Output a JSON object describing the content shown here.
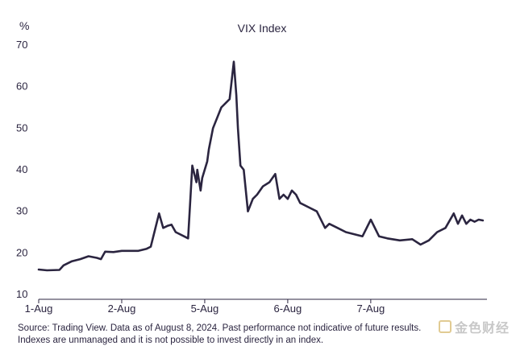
{
  "chart_data": {
    "type": "line",
    "title": "VIX Index",
    "ylabel": "%",
    "xlabel": "",
    "ylim": [
      10,
      70
    ],
    "yticks": [
      10,
      20,
      30,
      40,
      50,
      60,
      70
    ],
    "xlim": [
      0,
      5.4
    ],
    "xticks": [
      {
        "label": "1-Aug",
        "pos": 0
      },
      {
        "label": "2-Aug",
        "pos": 1
      },
      {
        "label": "5-Aug",
        "pos": 2
      },
      {
        "label": "6-Aug",
        "pos": 3
      },
      {
        "label": "7-Aug",
        "pos": 4
      }
    ],
    "grid": false,
    "legend": "none",
    "line_color": "#2b2540",
    "series": [
      {
        "x": [
          0,
          0.1,
          0.25,
          0.3,
          0.4,
          0.5,
          0.6,
          0.7,
          0.75,
          0.8,
          0.9,
          1.0,
          1.2,
          1.3,
          1.35,
          1.45,
          1.5,
          1.55,
          1.6,
          1.65,
          1.75,
          1.8,
          1.85,
          1.9,
          1.91,
          1.95,
          1.97,
          2.0,
          2.03,
          2.05,
          2.1,
          2.2,
          2.3,
          2.35,
          2.38,
          2.4,
          2.43,
          2.47,
          2.52,
          2.58,
          2.63,
          2.7,
          2.78,
          2.85,
          2.9,
          2.95,
          3.0,
          3.05,
          3.1,
          3.15,
          3.25,
          3.35,
          3.45,
          3.5,
          3.6,
          3.7,
          3.8,
          3.9,
          4.0,
          4.1,
          4.2,
          4.35,
          4.5,
          4.6,
          4.7,
          4.8,
          4.9,
          5.0,
          5.05,
          5.1,
          5.15,
          5.2,
          5.25,
          5.3,
          5.35
        ],
        "y": [
          16,
          15.8,
          15.9,
          17,
          18,
          18.5,
          19.2,
          18.8,
          18.5,
          20.3,
          20.2,
          20.5,
          20.5,
          21,
          21.5,
          29.5,
          26,
          26.5,
          26.8,
          25,
          24,
          23.5,
          41,
          37,
          40,
          35,
          38,
          40,
          42,
          45,
          50,
          55,
          57,
          66,
          58,
          50,
          41,
          40,
          30,
          33,
          34,
          36,
          37,
          39,
          33,
          34,
          33,
          35,
          34,
          32,
          31,
          30,
          26,
          27,
          26,
          25,
          24.5,
          24,
          28,
          24,
          23.5,
          23,
          23.3,
          22,
          23,
          25,
          26,
          29.5,
          27,
          29,
          27,
          28,
          27.5,
          28,
          27.8
        ]
      }
    ]
  },
  "source_text": "Source: Trading View. Data as of August 8, 2024. Past performance not indicative of future results. Indexes are unmanaged and it is not possible to invest directly in an index.",
  "watermark_text": "金色财经"
}
